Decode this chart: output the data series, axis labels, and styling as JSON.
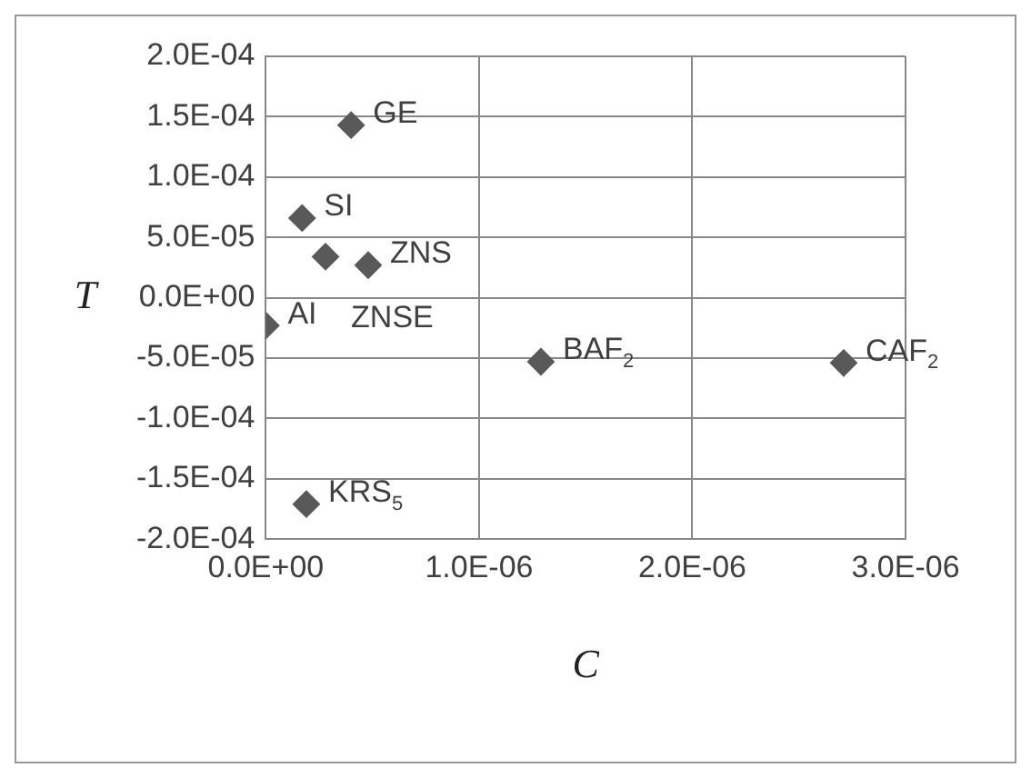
{
  "chart_data": {
    "type": "scatter",
    "xlabel": "C",
    "ylabel": "T",
    "x": [
      4e-07,
      1.7e-07,
      2.8e-07,
      4.8e-07,
      0,
      1.29e-06,
      2.71e-06,
      1.9e-07
    ],
    "series": [
      {
        "color": "#595959",
        "values": [
          0.000143,
          6.6e-05,
          3.4e-05,
          2.7e-05,
          -2.3e-05,
          -5.3e-05,
          -5.4e-05,
          -0.000171
        ]
      }
    ],
    "marker": "diamond",
    "grid": true,
    "legend": false,
    "xlim": [
      0,
      3e-06
    ],
    "xticks": [
      {
        "value": 0,
        "label": "0.0E+00"
      },
      {
        "value": 1e-06,
        "label": "1.0E-06"
      },
      {
        "value": 2e-06,
        "label": "2.0E-06"
      },
      {
        "value": 3e-06,
        "label": "3.0E-06"
      }
    ],
    "ylim": [
      -0.0002,
      0.0002
    ],
    "yticks": [
      {
        "value": -0.0002,
        "label": "-2.0E-04"
      },
      {
        "value": -0.00015,
        "label": "-1.5E-04"
      },
      {
        "value": -0.0001,
        "label": "-1.0E-04"
      },
      {
        "value": -5e-05,
        "label": "-5.0E-05"
      },
      {
        "value": 0,
        "label": "0.0E+00"
      },
      {
        "value": 5e-05,
        "label": "5.0E-05"
      },
      {
        "value": 0.0001,
        "label": "1.0E-04"
      },
      {
        "value": 0.00015,
        "label": "1.5E-04"
      },
      {
        "value": 0.0002,
        "label": "2.0E-04"
      }
    ],
    "annotations": [
      {
        "text": "GE",
        "x": 4e-07,
        "y": 0.000143
      },
      {
        "text": "SI",
        "x": 1.7e-07,
        "y": 6.6e-05
      },
      {
        "text": "ZNSE",
        "x": 2.8e-07,
        "y": 3.4e-05
      },
      {
        "text": "ZNS",
        "x": 4.8e-07,
        "y": 2.7e-05
      },
      {
        "text": "AI",
        "x": 0,
        "y": -2.3e-05
      },
      {
        "text": "BAF$_{2}$",
        "x": 1.29e-06,
        "y": -5.3e-05
      },
      {
        "text": "CAF$_{2}$",
        "x": 2.71e-06,
        "y": -5.4e-05
      },
      {
        "text": "KRS$_{5}$",
        "x": 1.9e-07,
        "y": -0.000171
      }
    ]
  }
}
